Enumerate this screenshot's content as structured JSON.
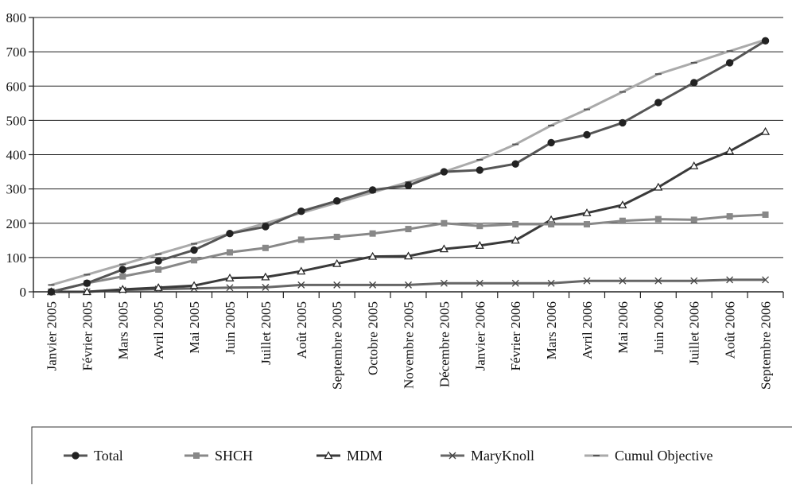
{
  "chart_data": {
    "type": "line",
    "categories": [
      "Janvier 2005",
      "Février 2005",
      "Mars 2005",
      "Avril 2005",
      "Mai 2005",
      "Juin 2005",
      "Juillet 2005",
      "Août 2005",
      "Septembre 2005",
      "Octobre 2005",
      "Novembre 2005",
      "Décembre 2005",
      "Janvier 2006",
      "Février 2006",
      "Mars 2006",
      "Avril 2006",
      "Mai 2006",
      "Juin 2006",
      "Juillet 2006",
      "Août 2006",
      "Septembre 2006"
    ],
    "ylim": [
      0,
      800
    ],
    "yticks": [
      0,
      100,
      200,
      300,
      400,
      500,
      600,
      700,
      800
    ],
    "grid": true,
    "legend_position": "bottom",
    "series": [
      {
        "name": "Total",
        "marker": "circle",
        "color": "#555555",
        "values": [
          0,
          25,
          65,
          90,
          122,
          170,
          190,
          235,
          265,
          297,
          310,
          350,
          355,
          373,
          435,
          458,
          493,
          552,
          610,
          668,
          732
        ]
      },
      {
        "name": "SHCH",
        "marker": "square",
        "color": "#888888",
        "values": [
          0,
          25,
          45,
          65,
          92,
          115,
          128,
          152,
          160,
          170,
          183,
          200,
          192,
          197,
          197,
          197,
          207,
          212,
          210,
          220,
          225
        ]
      },
      {
        "name": "MDM",
        "marker": "triangle",
        "color": "#3a3a3a",
        "values": [
          0,
          0,
          7,
          12,
          18,
          40,
          43,
          60,
          82,
          103,
          104,
          125,
          135,
          150,
          210,
          230,
          253,
          305,
          367,
          410,
          467
        ]
      },
      {
        "name": "MaryKnoll",
        "marker": "x",
        "color": "#666666",
        "values": [
          0,
          0,
          5,
          8,
          10,
          12,
          13,
          20,
          20,
          20,
          20,
          25,
          25,
          25,
          25,
          32,
          32,
          32,
          32,
          35,
          35
        ]
      },
      {
        "name": "Cumul Objective",
        "marker": "dash",
        "color": "#aaaaaa",
        "values": [
          20,
          50,
          80,
          110,
          140,
          170,
          200,
          230,
          260,
          290,
          320,
          350,
          385,
          430,
          485,
          532,
          583,
          635,
          668,
          702,
          735
        ]
      }
    ]
  }
}
